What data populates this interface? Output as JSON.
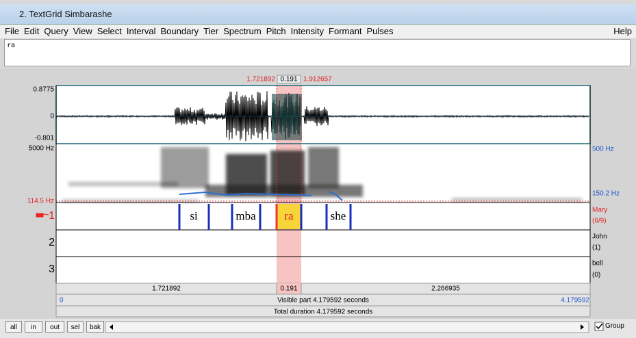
{
  "window": {
    "title": "2. TextGrid Simbarashe"
  },
  "menu": {
    "items": [
      "File",
      "Edit",
      "Query",
      "View",
      "Select",
      "Interval",
      "Boundary",
      "Tier",
      "Spectrum",
      "Pitch",
      "Intensity",
      "Formant",
      "Pulses"
    ],
    "help": "Help"
  },
  "text_field": "ra",
  "selection": {
    "start": "1.721892",
    "duration": "0.191",
    "end": "1.912657"
  },
  "waveform": {
    "max": "0.8775",
    "zero": "0",
    "min": "-0.801"
  },
  "spectrogram": {
    "top": "5000 Hz",
    "bottom": "114.5 Hz",
    "pitch_top": "500 Hz",
    "pitch_value": "150.2 Hz"
  },
  "tiers": [
    {
      "number": "1",
      "name": "Mary",
      "count": "(6/9)",
      "intervals": [
        "si",
        "mba",
        "ra",
        "she"
      ]
    },
    {
      "number": "2",
      "name": "John",
      "count": "(1)"
    },
    {
      "number": "3",
      "name": "bell",
      "count": "(0)"
    }
  ],
  "time_bar": {
    "before": "1.721892",
    "selected": "0.191",
    "after": "2.266935",
    "visible_start": "0",
    "visible": "Visible part 4.179592 seconds",
    "visible_end": "4.179592",
    "total": "Total duration 4.179592 seconds"
  },
  "buttons": [
    "all",
    "in",
    "out",
    "sel",
    "bak"
  ],
  "group": "Group"
}
